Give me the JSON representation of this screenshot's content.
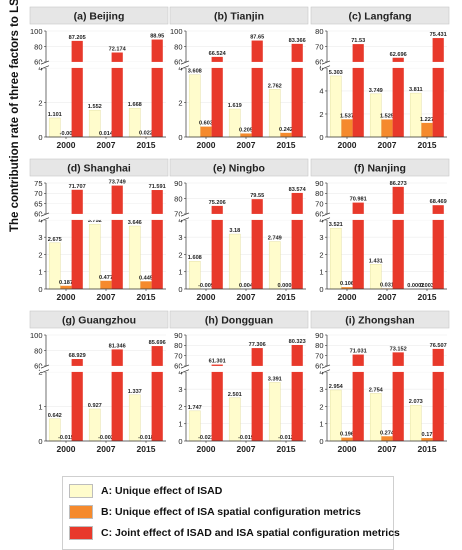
{
  "y_axis_title": "The contribution rate of three factors to LST (%)",
  "colors": {
    "A": "#fffccc",
    "B": "#f58a2d",
    "C": "#e8392b",
    "panel_header_bg": "#e6e6e6"
  },
  "legend": [
    {
      "key": "A",
      "label": "A: Unique effect of ISAD"
    },
    {
      "key": "B",
      "label": "B: Unique effect of ISA spatial configuration metrics"
    },
    {
      "key": "C",
      "label": "C: Joint effect of ISAD and ISA spatial configuration metrics"
    }
  ],
  "chart_data": [
    {
      "type": "bar",
      "title": "(a) Beijing",
      "categories": [
        "2000",
        "2007",
        "2015"
      ],
      "lower_ticks": [
        "0",
        "2",
        "4"
      ],
      "upper_ticks": [
        "60",
        "80",
        "100"
      ],
      "series": [
        {
          "name": "A",
          "values": [
            1.101,
            1.552,
            1.668
          ],
          "labels": [
            "1.101",
            "1.552",
            "1.668"
          ]
        },
        {
          "name": "B",
          "values": [
            -0.0,
            0.014,
            0.022
          ],
          "labels": [
            "-0.00",
            "0.014",
            "0.022"
          ]
        },
        {
          "name": "C",
          "values": [
            87.205,
            72.174,
            88.95
          ],
          "labels": [
            "87.205",
            "72.174",
            "88.95"
          ]
        }
      ]
    },
    {
      "type": "bar",
      "title": "(b) Tianjin",
      "categories": [
        "2000",
        "2007",
        "2015"
      ],
      "lower_ticks": [
        "0",
        "2",
        "4"
      ],
      "upper_ticks": [
        "60",
        "80",
        "100"
      ],
      "series": [
        {
          "name": "A",
          "values": [
            3.608,
            1.619,
            2.762
          ],
          "labels": [
            "3.608",
            "1.619",
            "2.762"
          ]
        },
        {
          "name": "B",
          "values": [
            0.603,
            0.205,
            0.242
          ],
          "labels": [
            "0.603",
            "0.205",
            "0.242"
          ]
        },
        {
          "name": "C",
          "values": [
            66.524,
            87.65,
            83.366
          ],
          "labels": [
            "66.524",
            "87.65",
            "83.366"
          ]
        }
      ]
    },
    {
      "type": "bar",
      "title": "(c) Langfang",
      "categories": [
        "2000",
        "2007",
        "2015"
      ],
      "lower_ticks": [
        "0",
        "2",
        "4",
        "6"
      ],
      "upper_ticks": [
        "60",
        "70",
        "80"
      ],
      "series": [
        {
          "name": "A",
          "values": [
            5.303,
            3.749,
            3.811
          ],
          "labels": [
            "5.303",
            "3.749",
            "3.811"
          ]
        },
        {
          "name": "B",
          "values": [
            1.537,
            1.525,
            1.227
          ],
          "labels": [
            "1.537",
            "1.525",
            "1.227"
          ]
        },
        {
          "name": "C",
          "values": [
            71.53,
            62.696,
            75.431
          ],
          "labels": [
            "71.53",
            "62.696",
            "75.431"
          ]
        }
      ]
    },
    {
      "type": "bar",
      "title": "(d) Shanghai",
      "categories": [
        "2000",
        "2007",
        "2015"
      ],
      "lower_ticks": [
        "0",
        "1",
        "2",
        "3",
        "4"
      ],
      "upper_ticks": [
        "60",
        "65",
        "70",
        "75"
      ],
      "series": [
        {
          "name": "A",
          "values": [
            2.675,
            3.752,
            3.646
          ],
          "labels": [
            "2.675",
            "3.752",
            "3.646"
          ]
        },
        {
          "name": "B",
          "values": [
            0.187,
            0.477,
            0.445
          ],
          "labels": [
            "0.187",
            "0.477",
            "0.445"
          ]
        },
        {
          "name": "C",
          "values": [
            71.707,
            73.749,
            71.591
          ],
          "labels": [
            "71.707",
            "73.749",
            "71.591"
          ]
        }
      ]
    },
    {
      "type": "bar",
      "title": "(e) Ningbo",
      "categories": [
        "2000",
        "2007",
        "2015"
      ],
      "lower_ticks": [
        "0",
        "1",
        "2",
        "3",
        "4"
      ],
      "upper_ticks": [
        "70",
        "80",
        "90"
      ],
      "series": [
        {
          "name": "A",
          "values": [
            1.608,
            3.18,
            2.749
          ],
          "labels": [
            "1.608",
            "3.18",
            "2.749"
          ]
        },
        {
          "name": "B",
          "values": [
            -0.009,
            0.004,
            0.0003
          ],
          "labels": [
            "-0.009",
            "0.004",
            "0.0003"
          ]
        },
        {
          "name": "C",
          "values": [
            75.206,
            79.55,
            83.574
          ],
          "labels": [
            "75.206",
            "79.55",
            "83.574"
          ]
        }
      ]
    },
    {
      "type": "bar",
      "title": "(f) Nanjing",
      "categories": [
        "2000",
        "2007",
        "2015"
      ],
      "lower_ticks": [
        "0",
        "1",
        "2",
        "3",
        "4"
      ],
      "upper_ticks": [
        "60",
        "70",
        "80",
        "90"
      ],
      "series": [
        {
          "name": "A",
          "values": [
            3.521,
            1.431,
            0.0002
          ],
          "labels": [
            "3.521",
            "1.431",
            "0.0002"
          ]
        },
        {
          "name": "B",
          "values": [
            0.106,
            0.031,
            0.003
          ],
          "labels": [
            "0.106",
            "0.031",
            "0.003"
          ]
        },
        {
          "name": "C",
          "values": [
            70.981,
            86.273,
            68.469
          ],
          "labels": [
            "70.981",
            "86.273",
            "68.469"
          ]
        }
      ]
    },
    {
      "type": "bar",
      "title": "(g) Guangzhou",
      "categories": [
        "2000",
        "2007",
        "2015"
      ],
      "lower_ticks": [
        "0",
        "1",
        "2"
      ],
      "upper_ticks": [
        "60",
        "80",
        "100"
      ],
      "series": [
        {
          "name": "A",
          "values": [
            0.642,
            0.927,
            1.337
          ],
          "labels": [
            "0.642",
            "0.927",
            "1.337"
          ]
        },
        {
          "name": "B",
          "values": [
            -0.015,
            -0.002,
            -0.018
          ],
          "labels": [
            "-0.015",
            "-0.002",
            "-0.018"
          ]
        },
        {
          "name": "C",
          "values": [
            68.929,
            81.346,
            85.696
          ],
          "labels": [
            "68.929",
            "81.346",
            "85.696"
          ]
        }
      ]
    },
    {
      "type": "bar",
      "title": "(h) Dongguan",
      "categories": [
        "2000",
        "2007",
        "2015"
      ],
      "lower_ticks": [
        "0",
        "1",
        "2",
        "3",
        "4"
      ],
      "upper_ticks": [
        "60",
        "70",
        "80",
        "90"
      ],
      "series": [
        {
          "name": "A",
          "values": [
            1.747,
            2.501,
            3.391
          ],
          "labels": [
            "1.747",
            "2.501",
            "3.391"
          ]
        },
        {
          "name": "B",
          "values": [
            -0.021,
            -0.019,
            -0.012
          ],
          "labels": [
            "-0.021",
            "-0.019",
            "-0.012"
          ]
        },
        {
          "name": "C",
          "values": [
            61.301,
            77.306,
            80.323
          ],
          "labels": [
            "61.301",
            "77.306",
            "80.323"
          ]
        }
      ]
    },
    {
      "type": "bar",
      "title": "(i) Zhongshan",
      "categories": [
        "2000",
        "2007",
        "2015"
      ],
      "lower_ticks": [
        "0",
        "1",
        "2",
        "3",
        "4"
      ],
      "upper_ticks": [
        "60",
        "70",
        "80",
        "90"
      ],
      "series": [
        {
          "name": "A",
          "values": [
            2.954,
            2.754,
            2.073
          ],
          "labels": [
            "2.954",
            "2.754",
            "2.073"
          ]
        },
        {
          "name": "B",
          "values": [
            0.196,
            0.274,
            0.17
          ],
          "labels": [
            "0.196",
            "0.274",
            "0.17"
          ]
        },
        {
          "name": "C",
          "values": [
            71.031,
            73.152,
            76.507
          ],
          "labels": [
            "71.031",
            "73.152",
            "76.507"
          ]
        }
      ]
    }
  ]
}
